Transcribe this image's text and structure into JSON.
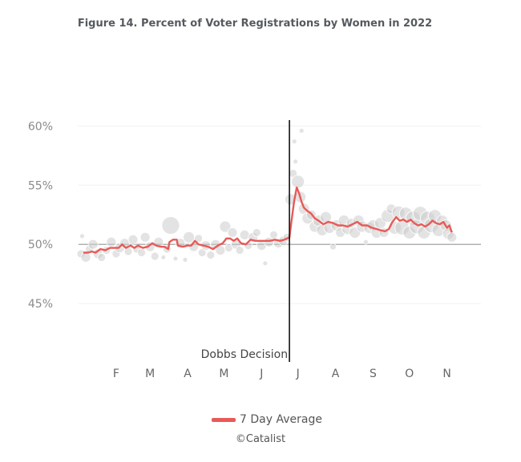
{
  "chart_data": {
    "type": "scatter",
    "title": "Figure 14. Percent of Voter Registrations by Women in 2022",
    "xlabel": "",
    "ylabel": "",
    "y_tick_labels": [
      "60%",
      "55%",
      "50%",
      "45%"
    ],
    "y_ticks": [
      60,
      55,
      50,
      45
    ],
    "ylim": [
      40,
      60.5
    ],
    "xlim": [
      "2022-01-01",
      "2022-11-29"
    ],
    "x_tick_labels": [
      "F",
      "M",
      "A",
      "M",
      "J",
      "J",
      "A",
      "S",
      "O",
      "N"
    ],
    "x_ticks": [
      "2022-02-01",
      "2022-03-01",
      "2022-04-01",
      "2022-05-01",
      "2022-06-01",
      "2022-07-01",
      "2022-08-01",
      "2022-09-01",
      "2022-10-01",
      "2022-11-01"
    ],
    "grid": true,
    "reference_line_y": 50,
    "event": {
      "date": "2022-06-24",
      "label": "Dobbs Decision"
    },
    "series": [
      {
        "name": "7 Day Average",
        "type": "line",
        "color": "#e85a57",
        "points": [
          [
            "2022-01-05",
            49.3
          ],
          [
            "2022-01-09",
            49.3
          ],
          [
            "2022-01-12",
            49.4
          ],
          [
            "2022-01-15",
            49.3
          ],
          [
            "2022-01-19",
            49.6
          ],
          [
            "2022-01-23",
            49.5
          ],
          [
            "2022-01-27",
            49.7
          ],
          [
            "2022-01-31",
            49.7
          ],
          [
            "2022-02-03",
            49.7
          ],
          [
            "2022-02-06",
            50.0
          ],
          [
            "2022-02-09",
            49.7
          ],
          [
            "2022-02-13",
            49.9
          ],
          [
            "2022-02-16",
            49.7
          ],
          [
            "2022-02-19",
            49.9
          ],
          [
            "2022-02-23",
            49.7
          ],
          [
            "2022-02-27",
            49.8
          ],
          [
            "2022-03-03",
            50.1
          ],
          [
            "2022-03-06",
            49.9
          ],
          [
            "2022-03-10",
            49.8
          ],
          [
            "2022-03-13",
            49.8
          ],
          [
            "2022-03-16",
            49.6
          ],
          [
            "2022-03-17",
            50.2
          ],
          [
            "2022-03-20",
            50.4
          ],
          [
            "2022-03-23",
            50.4
          ],
          [
            "2022-03-24",
            49.9
          ],
          [
            "2022-03-28",
            49.8
          ],
          [
            "2022-04-01",
            49.9
          ],
          [
            "2022-04-04",
            49.9
          ],
          [
            "2022-04-07",
            50.3
          ],
          [
            "2022-04-10",
            50.0
          ],
          [
            "2022-04-14",
            49.9
          ],
          [
            "2022-04-18",
            49.8
          ],
          [
            "2022-04-22",
            49.6
          ],
          [
            "2022-04-26",
            49.9
          ],
          [
            "2022-04-30",
            50.1
          ],
          [
            "2022-05-03",
            50.5
          ],
          [
            "2022-05-06",
            50.5
          ],
          [
            "2022-05-09",
            50.3
          ],
          [
            "2022-05-12",
            50.5
          ],
          [
            "2022-05-15",
            50.1
          ],
          [
            "2022-05-19",
            50.0
          ],
          [
            "2022-05-23",
            50.4
          ],
          [
            "2022-05-27",
            50.3
          ],
          [
            "2022-05-31",
            50.3
          ],
          [
            "2022-06-04",
            50.3
          ],
          [
            "2022-06-08",
            50.3
          ],
          [
            "2022-06-12",
            50.4
          ],
          [
            "2022-06-16",
            50.3
          ],
          [
            "2022-06-20",
            50.4
          ],
          [
            "2022-06-24",
            50.6
          ],
          [
            "2022-06-26",
            52.2
          ],
          [
            "2022-06-28",
            53.7
          ],
          [
            "2022-06-30",
            54.8
          ],
          [
            "2022-07-02",
            54.3
          ],
          [
            "2022-07-04",
            53.6
          ],
          [
            "2022-07-06",
            53.1
          ],
          [
            "2022-07-09",
            52.8
          ],
          [
            "2022-07-12",
            52.6
          ],
          [
            "2022-07-15",
            52.2
          ],
          [
            "2022-07-18",
            52.0
          ],
          [
            "2022-07-22",
            51.7
          ],
          [
            "2022-07-26",
            51.9
          ],
          [
            "2022-07-30",
            51.8
          ],
          [
            "2022-08-03",
            51.6
          ],
          [
            "2022-08-07",
            51.6
          ],
          [
            "2022-08-11",
            51.5
          ],
          [
            "2022-08-15",
            51.7
          ],
          [
            "2022-08-19",
            51.9
          ],
          [
            "2022-08-23",
            51.6
          ],
          [
            "2022-08-27",
            51.6
          ],
          [
            "2022-08-31",
            51.4
          ],
          [
            "2022-09-04",
            51.3
          ],
          [
            "2022-09-07",
            51.2
          ],
          [
            "2022-09-11",
            51.1
          ],
          [
            "2022-09-14",
            51.3
          ],
          [
            "2022-09-17",
            51.9
          ],
          [
            "2022-09-20",
            52.3
          ],
          [
            "2022-09-23",
            52.0
          ],
          [
            "2022-09-26",
            52.1
          ],
          [
            "2022-09-29",
            51.9
          ],
          [
            "2022-10-02",
            52.1
          ],
          [
            "2022-10-05",
            51.8
          ],
          [
            "2022-10-08",
            51.6
          ],
          [
            "2022-10-11",
            51.7
          ],
          [
            "2022-10-14",
            51.5
          ],
          [
            "2022-10-17",
            51.7
          ],
          [
            "2022-10-20",
            52.0
          ],
          [
            "2022-10-23",
            51.8
          ],
          [
            "2022-10-26",
            51.7
          ],
          [
            "2022-10-29",
            51.9
          ],
          [
            "2022-11-01",
            51.4
          ],
          [
            "2022-11-03",
            51.6
          ],
          [
            "2022-11-05",
            51.0
          ]
        ]
      },
      {
        "name": "",
        "type": "bubble",
        "color": "#cccccc",
        "points": [
          [
            "2022-01-03",
            49.2,
            5
          ],
          [
            "2022-01-04",
            50.7,
            3
          ],
          [
            "2022-01-07",
            48.9,
            6
          ],
          [
            "2022-01-10",
            49.6,
            5
          ],
          [
            "2022-01-13",
            50.0,
            6
          ],
          [
            "2022-01-17",
            49.2,
            6
          ],
          [
            "2022-01-20",
            48.9,
            5
          ],
          [
            "2022-01-24",
            49.5,
            5
          ],
          [
            "2022-01-28",
            50.2,
            6
          ],
          [
            "2022-02-01",
            49.2,
            5
          ],
          [
            "2022-02-04",
            49.7,
            6
          ],
          [
            "2022-02-08",
            50.1,
            6
          ],
          [
            "2022-02-11",
            49.4,
            5
          ],
          [
            "2022-02-15",
            50.4,
            6
          ],
          [
            "2022-02-18",
            49.6,
            5
          ],
          [
            "2022-02-22",
            49.3,
            5
          ],
          [
            "2022-02-25",
            50.6,
            6
          ],
          [
            "2022-03-01",
            49.8,
            6
          ],
          [
            "2022-03-05",
            49.0,
            5
          ],
          [
            "2022-03-08",
            50.2,
            6
          ],
          [
            "2022-03-12",
            48.9,
            3
          ],
          [
            "2022-03-15",
            49.6,
            5
          ],
          [
            "2022-03-18",
            51.6,
            11
          ],
          [
            "2022-03-22",
            48.8,
            3
          ],
          [
            "2022-03-26",
            50.1,
            6
          ],
          [
            "2022-03-30",
            48.7,
            3
          ],
          [
            "2022-04-02",
            50.6,
            7
          ],
          [
            "2022-04-06",
            49.8,
            6
          ],
          [
            "2022-04-10",
            50.5,
            5
          ],
          [
            "2022-04-13",
            49.3,
            5
          ],
          [
            "2022-04-16",
            49.9,
            6
          ],
          [
            "2022-04-20",
            49.1,
            5
          ],
          [
            "2022-04-24",
            50.0,
            6
          ],
          [
            "2022-04-28",
            49.5,
            6
          ],
          [
            "2022-05-02",
            51.5,
            7
          ],
          [
            "2022-05-05",
            49.7,
            5
          ],
          [
            "2022-05-08",
            51.0,
            6
          ],
          [
            "2022-05-11",
            50.0,
            6
          ],
          [
            "2022-05-14",
            49.5,
            5
          ],
          [
            "2022-05-18",
            50.8,
            6
          ],
          [
            "2022-05-21",
            49.9,
            5
          ],
          [
            "2022-05-25",
            50.6,
            6
          ],
          [
            "2022-05-28",
            51.0,
            5
          ],
          [
            "2022-06-01",
            49.9,
            6
          ],
          [
            "2022-06-04",
            48.4,
            3
          ],
          [
            "2022-06-07",
            50.2,
            6
          ],
          [
            "2022-06-11",
            50.8,
            5
          ],
          [
            "2022-06-15",
            50.1,
            6
          ],
          [
            "2022-06-19",
            50.3,
            6
          ],
          [
            "2022-06-22",
            50.6,
            5
          ],
          [
            "2022-06-25",
            53.8,
            7
          ],
          [
            "2022-06-27",
            56.0,
            5
          ],
          [
            "2022-06-28",
            58.7,
            3
          ],
          [
            "2022-06-29",
            57.0,
            3
          ],
          [
            "2022-07-01",
            55.3,
            8
          ],
          [
            "2022-07-03",
            54.0,
            7
          ],
          [
            "2022-07-04",
            59.6,
            3
          ],
          [
            "2022-07-06",
            53.0,
            7
          ],
          [
            "2022-07-09",
            52.2,
            7
          ],
          [
            "2022-07-12",
            52.5,
            6
          ],
          [
            "2022-07-15",
            51.5,
            7
          ],
          [
            "2022-07-18",
            52.0,
            7
          ],
          [
            "2022-07-21",
            51.2,
            7
          ],
          [
            "2022-07-24",
            52.3,
            7
          ],
          [
            "2022-07-27",
            51.4,
            7
          ],
          [
            "2022-07-30",
            49.8,
            4
          ],
          [
            "2022-08-02",
            51.6,
            7
          ],
          [
            "2022-08-05",
            51.0,
            6
          ],
          [
            "2022-08-08",
            52.0,
            7
          ],
          [
            "2022-08-11",
            51.3,
            7
          ],
          [
            "2022-08-14",
            51.8,
            6
          ],
          [
            "2022-08-17",
            51.0,
            7
          ],
          [
            "2022-08-20",
            52.0,
            7
          ],
          [
            "2022-08-23",
            51.5,
            7
          ],
          [
            "2022-08-26",
            50.2,
            3
          ],
          [
            "2022-08-29",
            51.4,
            7
          ],
          [
            "2022-09-01",
            51.6,
            7
          ],
          [
            "2022-09-04",
            51.0,
            7
          ],
          [
            "2022-09-07",
            51.8,
            7
          ],
          [
            "2022-09-10",
            51.0,
            6
          ],
          [
            "2022-09-13",
            52.4,
            8
          ],
          [
            "2022-09-16",
            53.0,
            6
          ],
          [
            "2022-09-19",
            51.4,
            8
          ],
          [
            "2022-09-22",
            52.7,
            8
          ],
          [
            "2022-09-25",
            51.4,
            9
          ],
          [
            "2022-09-28",
            52.6,
            8
          ],
          [
            "2022-10-01",
            51.0,
            8
          ],
          [
            "2022-10-04",
            52.2,
            9
          ],
          [
            "2022-10-07",
            51.5,
            9
          ],
          [
            "2022-10-10",
            52.6,
            9
          ],
          [
            "2022-10-13",
            51.0,
            8
          ],
          [
            "2022-10-16",
            52.2,
            9
          ],
          [
            "2022-10-19",
            51.6,
            9
          ],
          [
            "2022-10-22",
            52.4,
            8
          ],
          [
            "2022-10-25",
            51.2,
            8
          ],
          [
            "2022-10-28",
            52.0,
            7
          ],
          [
            "2022-10-31",
            51.6,
            7
          ],
          [
            "2022-11-02",
            50.9,
            7
          ],
          [
            "2022-11-05",
            50.6,
            6
          ]
        ]
      }
    ]
  },
  "legend": {
    "label": "7 Day Average"
  },
  "credit": "©Catalist"
}
